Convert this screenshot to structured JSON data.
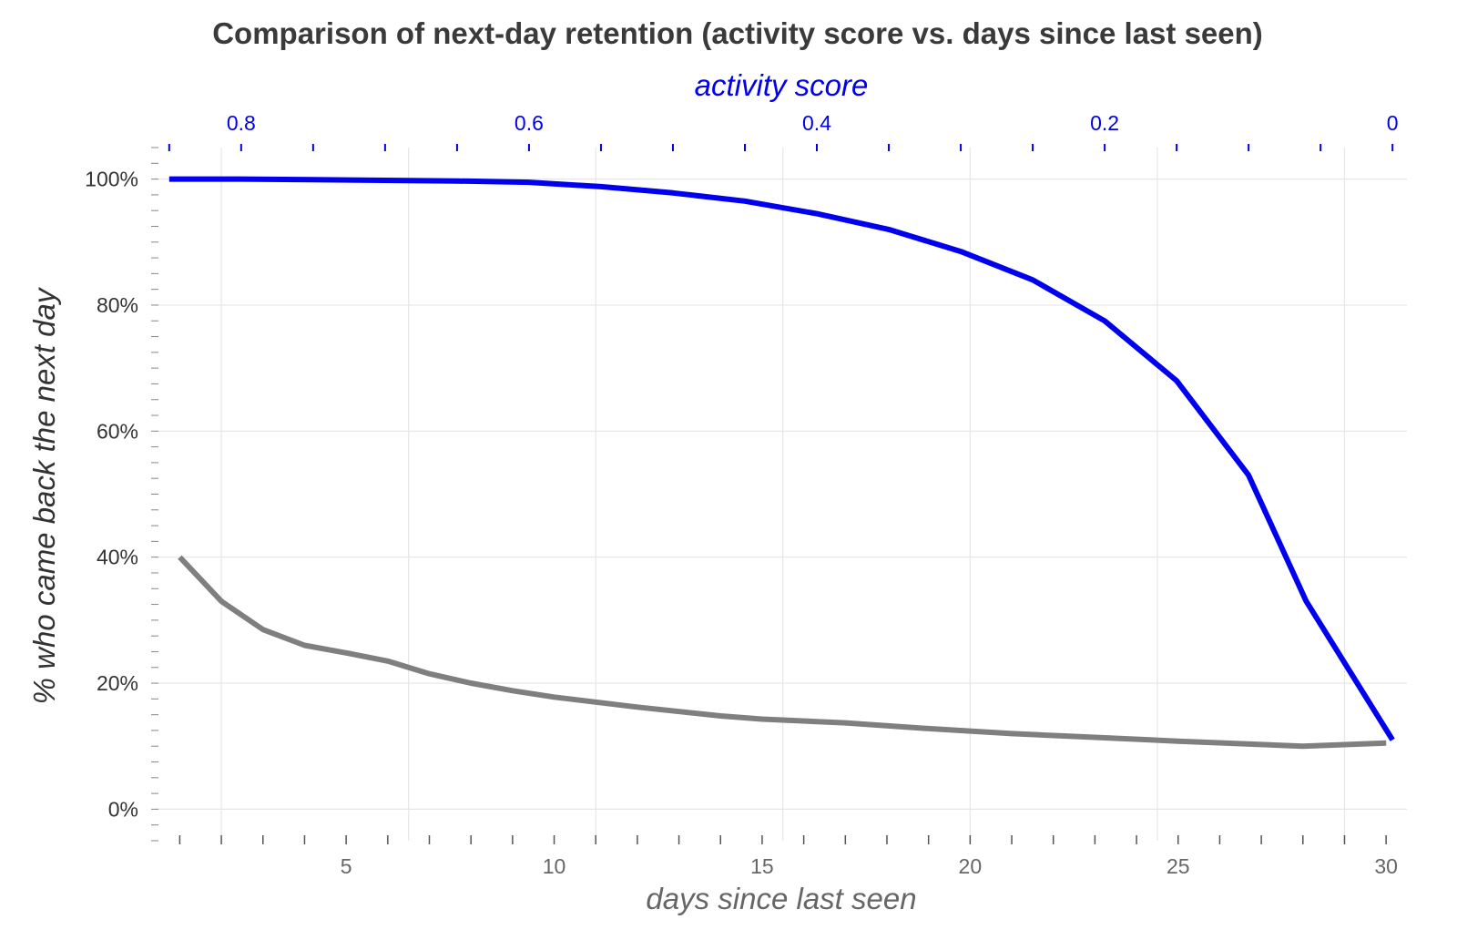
{
  "chart_data": {
    "type": "line",
    "title": "Comparison of next-day retention (activity score vs. days since last seen)",
    "xlabel": "days since last seen",
    "x2label": "activity score",
    "ylabel": "% who came back the next day",
    "xlim": [
      0.4,
      30.5
    ],
    "x2lim": [
      0.86,
      -0.01
    ],
    "ylim": [
      -0.05,
      1.05
    ],
    "x_ticks": [
      5,
      10,
      15,
      20,
      25,
      30
    ],
    "x_tick_labels": [
      "5",
      "10",
      "15",
      "20",
      "25",
      "30"
    ],
    "x2_ticks": [
      0.8,
      0.6,
      0.4,
      0.2,
      0
    ],
    "x2_tick_labels": [
      "0.8",
      "0.6",
      "0.4",
      "0.2",
      "0"
    ],
    "y_ticks": [
      0,
      0.2,
      0.4,
      0.6,
      0.8,
      1.0
    ],
    "y_tick_labels": [
      "0%",
      "20%",
      "40%",
      "60%",
      "80%",
      "100%"
    ],
    "grid": true,
    "colors": {
      "activity": "#0000ee",
      "days": "#7f7f7f",
      "top_axis": "#0000ee",
      "bottom_axis": "#666666"
    },
    "series": [
      {
        "axis": "x2",
        "x": [
          0.85,
          0.8,
          0.75,
          0.7,
          0.65,
          0.6,
          0.55,
          0.5,
          0.45,
          0.4,
          0.35,
          0.3,
          0.25,
          0.2,
          0.15,
          0.1,
          0.06,
          0.0
        ],
        "y": [
          1.0,
          1.0,
          0.999,
          0.998,
          0.997,
          0.995,
          0.988,
          0.978,
          0.965,
          0.945,
          0.92,
          0.885,
          0.84,
          0.775,
          0.68,
          0.53,
          0.33,
          0.11
        ]
      },
      {
        "axis": "x",
        "x": [
          1,
          2,
          3,
          4,
          5,
          6,
          7,
          8,
          9,
          10,
          12,
          14,
          15,
          17,
          19,
          21,
          23,
          25,
          28,
          30
        ],
        "y": [
          0.4,
          0.33,
          0.285,
          0.26,
          0.248,
          0.235,
          0.215,
          0.2,
          0.188,
          0.178,
          0.162,
          0.148,
          0.143,
          0.137,
          0.128,
          0.12,
          0.114,
          0.108,
          0.1,
          0.105
        ]
      }
    ]
  }
}
